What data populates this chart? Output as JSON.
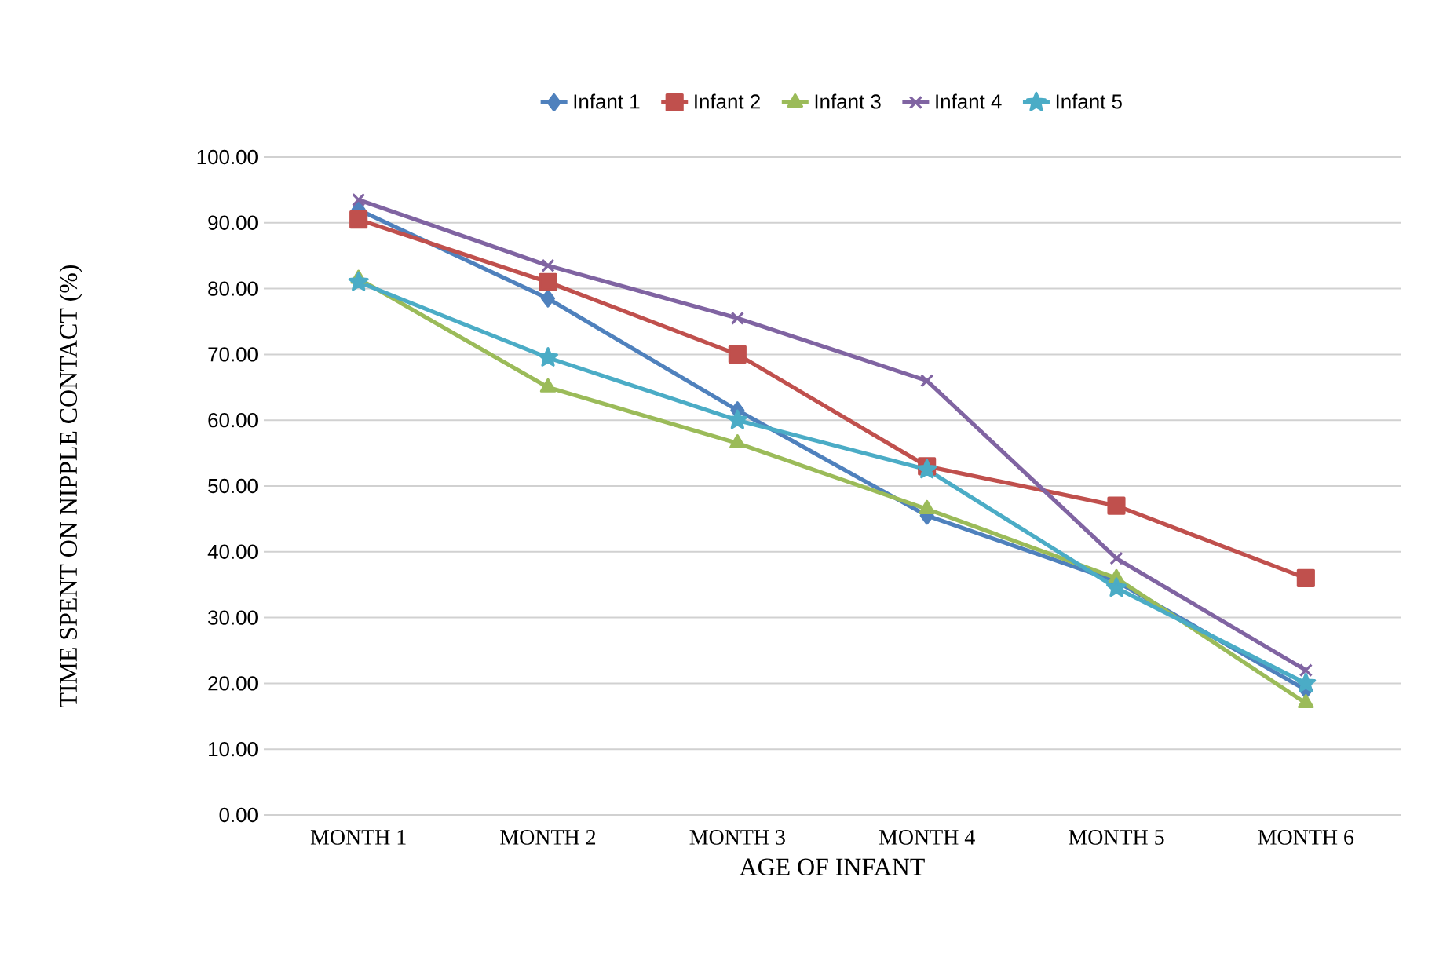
{
  "chart_data": {
    "type": "line",
    "xlabel": "AGE OF INFANT",
    "ylabel": "TIME SPENT ON NIPPLE CONTACT (%)",
    "categories": [
      "MONTH 1",
      "MONTH 2",
      "MONTH 3",
      "MONTH 4",
      "MONTH 5",
      "MONTH 6"
    ],
    "series": [
      {
        "name": "Infant 1",
        "color": "#4f81bd",
        "marker": "diamond",
        "values": [
          92,
          78.5,
          61.5,
          45.5,
          35.5,
          19
        ]
      },
      {
        "name": "Infant 2",
        "color": "#c0504d",
        "marker": "square",
        "values": [
          90.5,
          81,
          70,
          53,
          47,
          36
        ]
      },
      {
        "name": "Infant 3",
        "color": "#9bbb59",
        "marker": "triangle",
        "values": [
          81.5,
          65,
          56.5,
          46.5,
          36,
          17
        ]
      },
      {
        "name": "Infant 4",
        "color": "#8064a2",
        "marker": "cross",
        "values": [
          93.5,
          83.5,
          75.5,
          66,
          39,
          22
        ]
      },
      {
        "name": "Infant 5",
        "color": "#4bacc6",
        "marker": "star",
        "values": [
          81,
          69.5,
          60,
          52.5,
          34.5,
          20
        ]
      }
    ],
    "ylim": [
      0,
      100
    ],
    "yticks": [
      {
        "value": 0,
        "label": "0.00"
      },
      {
        "value": 10,
        "label": "10.00"
      },
      {
        "value": 20,
        "label": "20.00"
      },
      {
        "value": 30,
        "label": "30.00"
      },
      {
        "value": 40,
        "label": "40.00"
      },
      {
        "value": 50,
        "label": "50.00"
      },
      {
        "value": 60,
        "label": "60.00"
      },
      {
        "value": 70,
        "label": "70.00"
      },
      {
        "value": 80,
        "label": "80.00"
      },
      {
        "value": 90,
        "label": "90.00"
      },
      {
        "value": 100,
        "label": "100.00"
      }
    ],
    "grid": "y",
    "legend": "top",
    "line_style": "solid"
  }
}
